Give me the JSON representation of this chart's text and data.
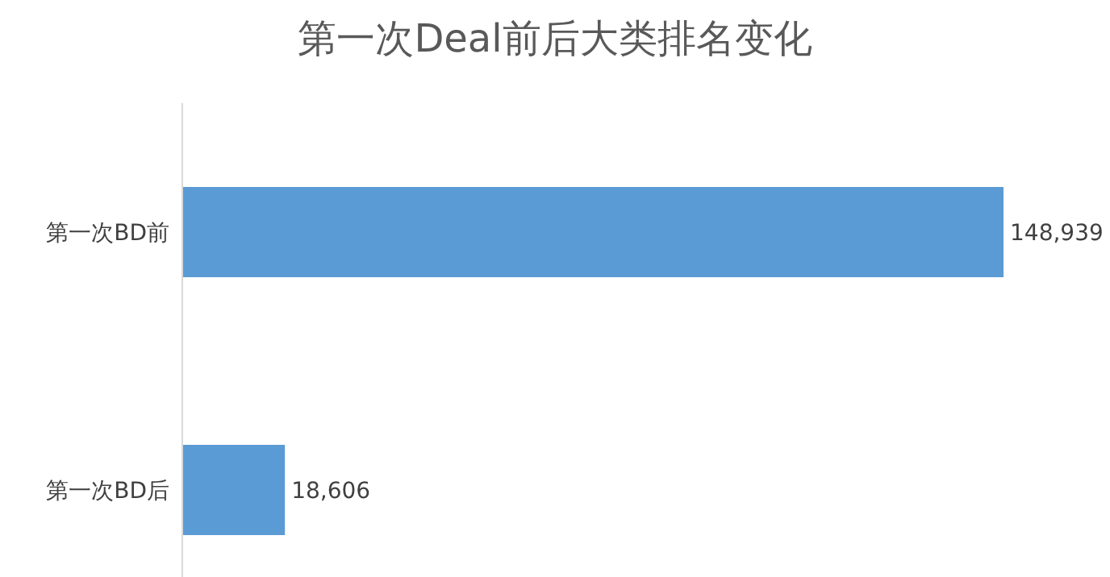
{
  "chart_data": {
    "type": "bar",
    "title": "第一次Deal前后大类排名变化",
    "orientation": "horizontal",
    "categories": [
      "第一次BD前",
      "第一次BD后"
    ],
    "values": [
      148939,
      18606
    ],
    "color": "#5b9bd5",
    "value_labels": [
      "148,939",
      "18,606"
    ]
  }
}
